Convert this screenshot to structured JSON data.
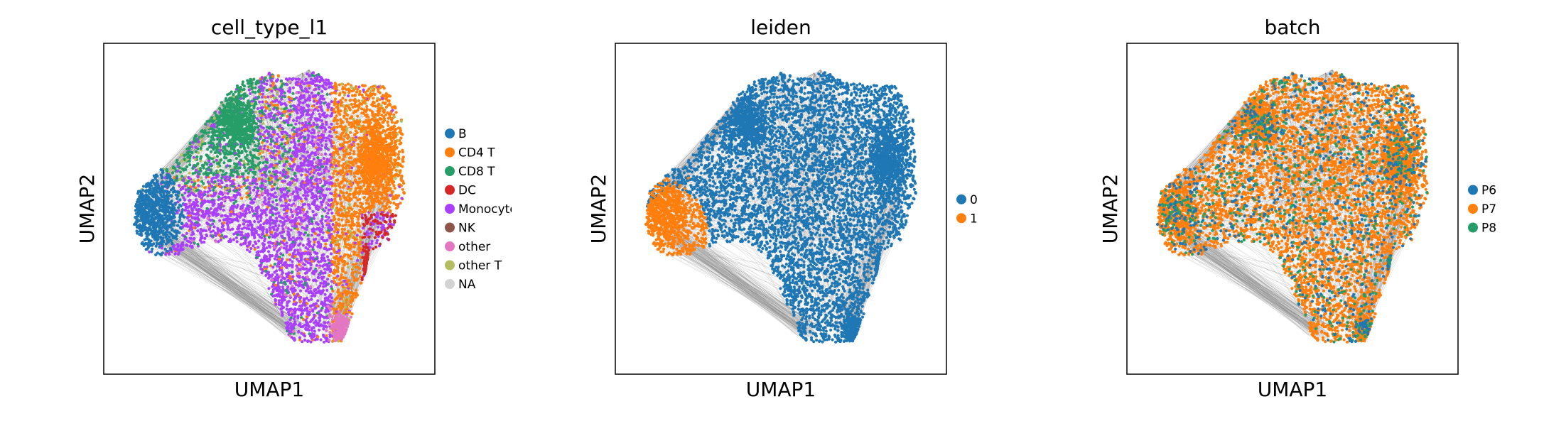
{
  "chart_data": [
    {
      "type": "scatter",
      "title": "cell_type_l1",
      "xlabel": "UMAP1",
      "ylabel": "UMAP2",
      "grid": false,
      "ticks": false,
      "legend_position": "right",
      "edges": true,
      "series": [
        {
          "name": "B",
          "color": "#1f77b4"
        },
        {
          "name": "CD4 T",
          "color": "#ff7f0e"
        },
        {
          "name": "CD8 T",
          "color": "#279e68"
        },
        {
          "name": "DC",
          "color": "#d62728"
        },
        {
          "name": "Monocytes",
          "color": "#aa40fc"
        },
        {
          "name": "NK",
          "color": "#8c564b"
        },
        {
          "name": "other",
          "color": "#e377c2"
        },
        {
          "name": "other T",
          "color": "#b5bd61"
        },
        {
          "name": "NA",
          "color": "#d3d3d3"
        }
      ]
    },
    {
      "type": "scatter",
      "title": "leiden",
      "xlabel": "UMAP1",
      "ylabel": "UMAP2",
      "grid": false,
      "ticks": false,
      "legend_position": "right",
      "edges": true,
      "series": [
        {
          "name": "0",
          "color": "#1f77b4"
        },
        {
          "name": "1",
          "color": "#ff7f0e"
        }
      ]
    },
    {
      "type": "scatter",
      "title": "batch",
      "xlabel": "UMAP1",
      "ylabel": "UMAP2",
      "grid": false,
      "ticks": false,
      "legend_position": "right",
      "edges": true,
      "series": [
        {
          "name": "P6",
          "color": "#1f77b4"
        },
        {
          "name": "P7",
          "color": "#ff7f0e"
        },
        {
          "name": "P8",
          "color": "#279e68"
        }
      ]
    }
  ]
}
